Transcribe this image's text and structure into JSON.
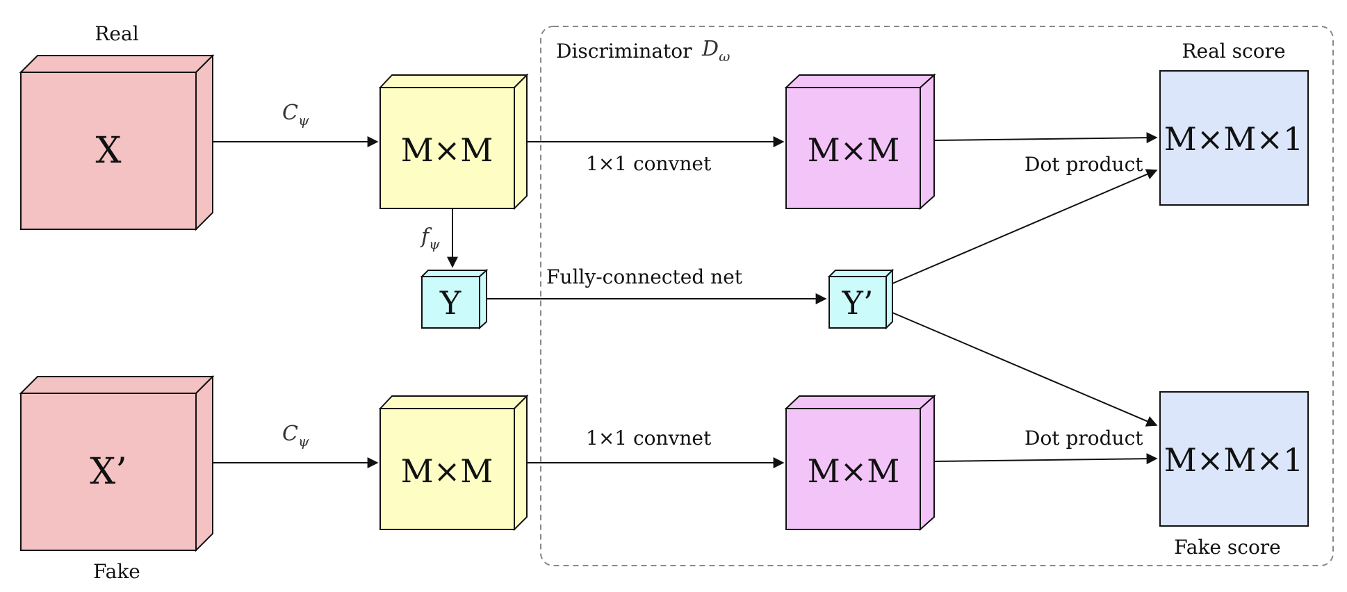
{
  "labels": {
    "real": "Real",
    "fake": "Fake",
    "discriminator": "Discriminator",
    "discriminator_symbol": "D",
    "discriminator_sub": "ω",
    "real_score": "Real score",
    "fake_score": "Fake score",
    "c_psi_top": "C",
    "c_psi_top_sub": "ψ",
    "c_psi_bottom": "C",
    "c_psi_bottom_sub": "ψ",
    "f_psi": "f",
    "f_psi_sub": "ψ",
    "convnet_top": "1×1 convnet",
    "convnet_bottom": "1×1 convnet",
    "fully_connected": "Fully-connected net",
    "dot_top": "Dot product",
    "dot_bottom": "Dot product"
  },
  "boxes": {
    "x": "X",
    "x_prime": "X’",
    "mm_top": "M×M",
    "mm_bottom": "M×M",
    "y": "Y",
    "y_prime": "Y’",
    "mm_disc_top": "M×M",
    "mm_disc_bottom": "M×M",
    "mm1_top": "M×M×1",
    "mm1_bottom": "M×M×1"
  },
  "colors": {
    "input": "#f4c2c2",
    "feature": "#fdfdc4",
    "label": "#cbfbfb",
    "disc_feature": "#f3c4f7",
    "score": "#dbe6fb",
    "dashed_border": "#888888"
  }
}
